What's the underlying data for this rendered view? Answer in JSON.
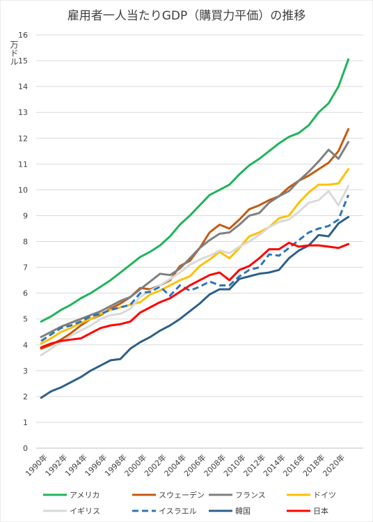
{
  "chart_data": {
    "type": "line",
    "title": "雇用者一人当たりGDP（購買力平価）の推移",
    "ylabel": "万ドル",
    "xlabel": "",
    "ylim": [
      0,
      16
    ],
    "yticks": [
      0,
      1,
      2,
      3,
      4,
      5,
      6,
      7,
      8,
      9,
      10,
      11,
      12,
      13,
      14,
      15,
      16
    ],
    "grid": true,
    "legend_position": "bottom",
    "x": [
      1990,
      1991,
      1992,
      1993,
      1994,
      1995,
      1996,
      1997,
      1998,
      1999,
      2000,
      2001,
      2002,
      2003,
      2004,
      2005,
      2006,
      2007,
      2008,
      2009,
      2010,
      2011,
      2012,
      2013,
      2014,
      2015,
      2016,
      2017,
      2018,
      2019,
      2020,
      2021,
      2022
    ],
    "x_tick_labels": [
      "1990年",
      "1992年",
      "1994年",
      "1996年",
      "1998年",
      "2000年",
      "2002年",
      "2004年",
      "2006年",
      "2008年",
      "2010年",
      "2012年",
      "2014年",
      "2016年",
      "2018年",
      "2020年"
    ],
    "series": [
      {
        "name": "アメリカ",
        "color": "#1fb45a",
        "dash": false,
        "values": [
          4.9,
          5.1,
          5.35,
          5.55,
          5.8,
          6.0,
          6.25,
          6.5,
          6.8,
          7.1,
          7.4,
          7.6,
          7.85,
          8.2,
          8.65,
          9.0,
          9.4,
          9.8,
          10.0,
          10.2,
          10.6,
          10.95,
          11.2,
          11.5,
          11.8,
          12.05,
          12.2,
          12.5,
          13.0,
          13.35,
          14.0,
          15.05,
          null
        ]
      },
      {
        "name": "スウェーデン",
        "color": "#c55a11",
        "dash": false,
        "values": [
          3.85,
          4.0,
          4.2,
          4.45,
          4.75,
          5.0,
          5.15,
          5.4,
          5.6,
          5.85,
          6.2,
          6.15,
          6.3,
          6.5,
          7.05,
          7.25,
          7.75,
          8.35,
          8.65,
          8.5,
          8.85,
          9.25,
          9.4,
          9.6,
          9.75,
          10.1,
          10.35,
          10.55,
          10.8,
          11.05,
          11.5,
          12.35,
          null
        ]
      },
      {
        "name": "フランス",
        "color": "#7f7f7f",
        "dash": false,
        "values": [
          4.3,
          4.5,
          4.7,
          4.85,
          5.0,
          5.15,
          5.3,
          5.5,
          5.7,
          5.85,
          6.15,
          6.45,
          6.75,
          6.7,
          6.95,
          7.35,
          7.75,
          8.05,
          8.3,
          8.35,
          8.65,
          9.0,
          9.1,
          9.5,
          9.75,
          9.95,
          10.35,
          10.7,
          11.1,
          11.55,
          11.2,
          11.85,
          null
        ]
      },
      {
        "name": "ドイツ",
        "color": "#ffc000",
        "dash": false,
        "values": [
          4.05,
          4.25,
          4.5,
          4.65,
          4.85,
          5.0,
          5.2,
          5.35,
          5.45,
          5.55,
          5.65,
          5.95,
          6.1,
          6.3,
          6.5,
          6.65,
          7.05,
          7.3,
          7.6,
          7.35,
          7.75,
          8.2,
          8.35,
          8.55,
          8.9,
          9.0,
          9.5,
          9.9,
          10.2,
          10.2,
          10.25,
          10.8,
          null
        ]
      },
      {
        "name": "イギリス",
        "color": "#d9d9d9",
        "dash": false,
        "values": [
          3.6,
          3.85,
          4.1,
          4.35,
          4.55,
          4.75,
          5.0,
          5.15,
          5.2,
          5.4,
          5.85,
          6.1,
          6.3,
          6.55,
          6.8,
          7.1,
          7.3,
          7.45,
          7.65,
          7.55,
          7.8,
          8.0,
          8.25,
          8.55,
          8.75,
          8.85,
          9.15,
          9.5,
          9.6,
          9.95,
          9.4,
          10.15,
          null
        ]
      },
      {
        "name": "イスラエル",
        "color": "#2e75b6",
        "dash": true,
        "values": [
          4.15,
          4.4,
          4.65,
          4.75,
          4.9,
          5.1,
          5.2,
          5.35,
          5.45,
          5.55,
          6.0,
          6.05,
          6.25,
          5.9,
          6.3,
          6.1,
          6.25,
          6.45,
          6.3,
          6.3,
          6.65,
          6.9,
          7.0,
          7.5,
          7.45,
          7.75,
          8.05,
          8.35,
          8.5,
          8.6,
          8.85,
          9.8,
          null
        ]
      },
      {
        "name": "韓国",
        "color": "#2e5f8a",
        "dash": false,
        "values": [
          1.95,
          2.2,
          2.35,
          2.55,
          2.75,
          3.0,
          3.2,
          3.4,
          3.45,
          3.85,
          4.1,
          4.3,
          4.55,
          4.75,
          5.0,
          5.3,
          5.6,
          5.95,
          6.15,
          6.15,
          6.55,
          6.65,
          6.75,
          6.8,
          6.9,
          7.35,
          7.65,
          7.85,
          8.25,
          8.2,
          8.7,
          8.95,
          null
        ]
      },
      {
        "name": "日本",
        "color": "#ff0000",
        "dash": false,
        "values": [
          3.9,
          4.05,
          4.15,
          4.2,
          4.25,
          4.45,
          4.65,
          4.75,
          4.8,
          4.9,
          5.25,
          5.45,
          5.65,
          5.8,
          6.05,
          6.3,
          6.5,
          6.7,
          6.8,
          6.5,
          6.9,
          7.05,
          7.35,
          7.7,
          7.7,
          7.95,
          7.8,
          7.85,
          7.85,
          7.8,
          7.75,
          7.9,
          null
        ]
      }
    ]
  }
}
